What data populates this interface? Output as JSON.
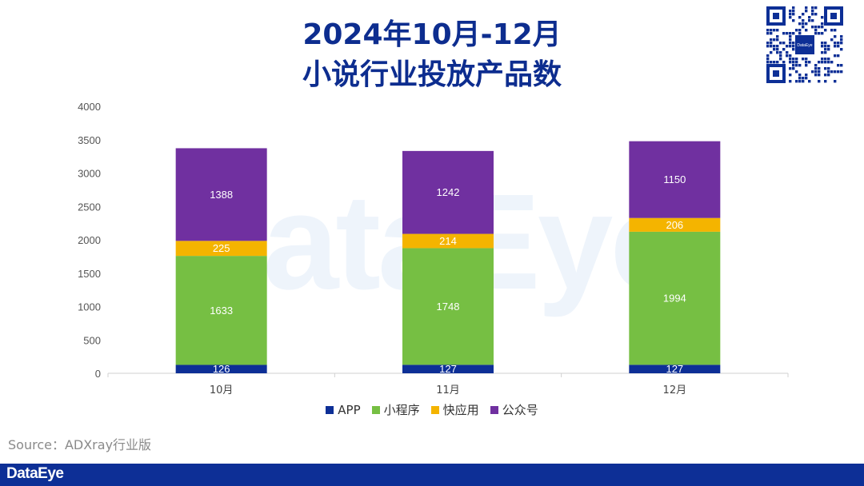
{
  "title_line1": "2024年10月-12月",
  "title_line2": "小说行业投放产品数",
  "source": "Source：ADXray行业版",
  "brand": "DataEye",
  "watermark": "DataEye",
  "qr_center_label": "DataEye",
  "chart_data": {
    "type": "bar",
    "stacked": true,
    "categories": [
      "10月",
      "11月",
      "12月"
    ],
    "series": [
      {
        "name": "APP",
        "values": [
          126,
          127,
          127
        ],
        "color": "#0d2f96"
      },
      {
        "name": "小程序",
        "values": [
          1633,
          1748,
          1994
        ],
        "color": "#76bf43"
      },
      {
        "name": "快应用",
        "values": [
          225,
          214,
          206
        ],
        "color": "#f4b400"
      },
      {
        "name": "公众号",
        "values": [
          1388,
          1242,
          1150
        ],
        "color": "#7030a0"
      }
    ],
    "ylim": [
      0,
      4000
    ],
    "yticks": [
      0,
      500,
      1000,
      1500,
      2000,
      2500,
      3000,
      3500,
      4000
    ],
    "legend_position": "bottom",
    "grid": false,
    "data_labels": true
  }
}
